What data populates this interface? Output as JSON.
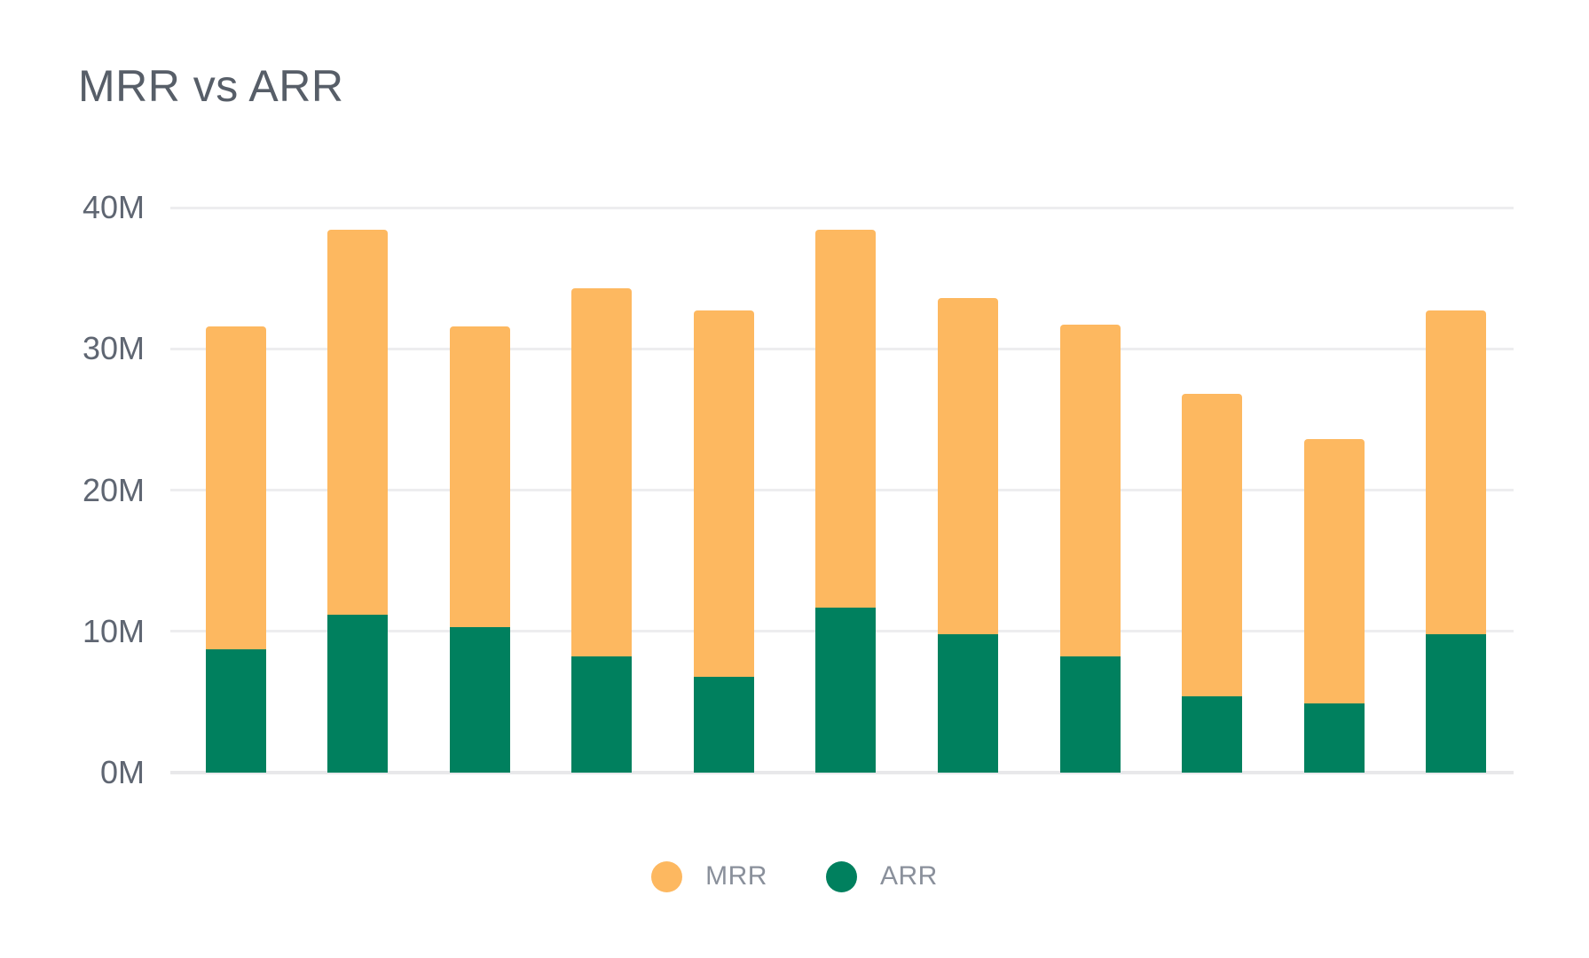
{
  "title": "MRR vs ARR",
  "colors": {
    "mrr_orange": "#FDB860",
    "arr_green": "#00805E",
    "title_text": "#575E68",
    "tick_text": "#5F6672",
    "legend_text": "#8A909B",
    "gridline": "#EDEDEF"
  },
  "y_axis": {
    "tick_labels_top_to_bottom": [
      "40M",
      "30M",
      "20M",
      "10M",
      "0M"
    ]
  },
  "legend": {
    "items": [
      {
        "label": "MRR",
        "color": "#FDB860"
      },
      {
        "label": "ARR",
        "color": "#00805E"
      }
    ]
  },
  "chart_data": {
    "type": "bar",
    "stacked": true,
    "title": "MRR vs ARR",
    "x_labels": [],
    "num_bars": 11,
    "series": [
      {
        "name": "MRR",
        "color": "#FDB860",
        "position": "top",
        "values": [
          22.9,
          27.2,
          21.3,
          26.1,
          25.9,
          26.7,
          23.8,
          23.5,
          21.4,
          18.7,
          22.9
        ]
      },
      {
        "name": "ARR",
        "color": "#00805E",
        "position": "bottom",
        "values": [
          8.7,
          11.2,
          10.3,
          8.2,
          6.8,
          11.7,
          9.8,
          8.2,
          5.4,
          4.9,
          9.8
        ]
      }
    ],
    "stack_totals": [
      31.6,
      38.4,
      31.6,
      34.3,
      32.7,
      38.4,
      33.6,
      31.7,
      26.8,
      23.6,
      32.7
    ],
    "unit": "M",
    "ylabel": "",
    "ylim": [
      0,
      40
    ],
    "y_tick_step": 10,
    "grid": true,
    "legend_position": "bottom"
  }
}
